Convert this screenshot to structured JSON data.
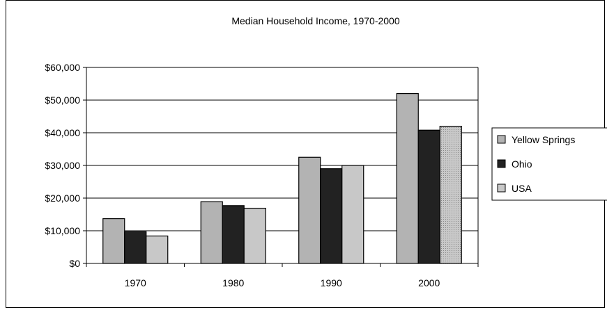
{
  "chart_data": {
    "type": "bar",
    "title": "Median Household Income, 1970-2000",
    "categories": [
      "1970",
      "1980",
      "1990",
      "2000"
    ],
    "series": [
      {
        "name": "Yellow Springs",
        "values": [
          13700,
          18900,
          32500,
          52000
        ],
        "color": "#b3b3b3"
      },
      {
        "name": "Ohio",
        "values": [
          9700,
          17700,
          29000,
          40800
        ],
        "color": "#222222"
      },
      {
        "name": "USA",
        "values": [
          8400,
          16900,
          30000,
          42000
        ],
        "color": "#c8c8c8"
      }
    ],
    "y_ticks": [
      "$0",
      "$10,000",
      "$20,000",
      "$30,000",
      "$40,000",
      "$50,000",
      "$60,000"
    ],
    "ylim": [
      0,
      60000
    ],
    "xlabel": "",
    "ylabel": "",
    "grid": true,
    "legend": "right"
  }
}
